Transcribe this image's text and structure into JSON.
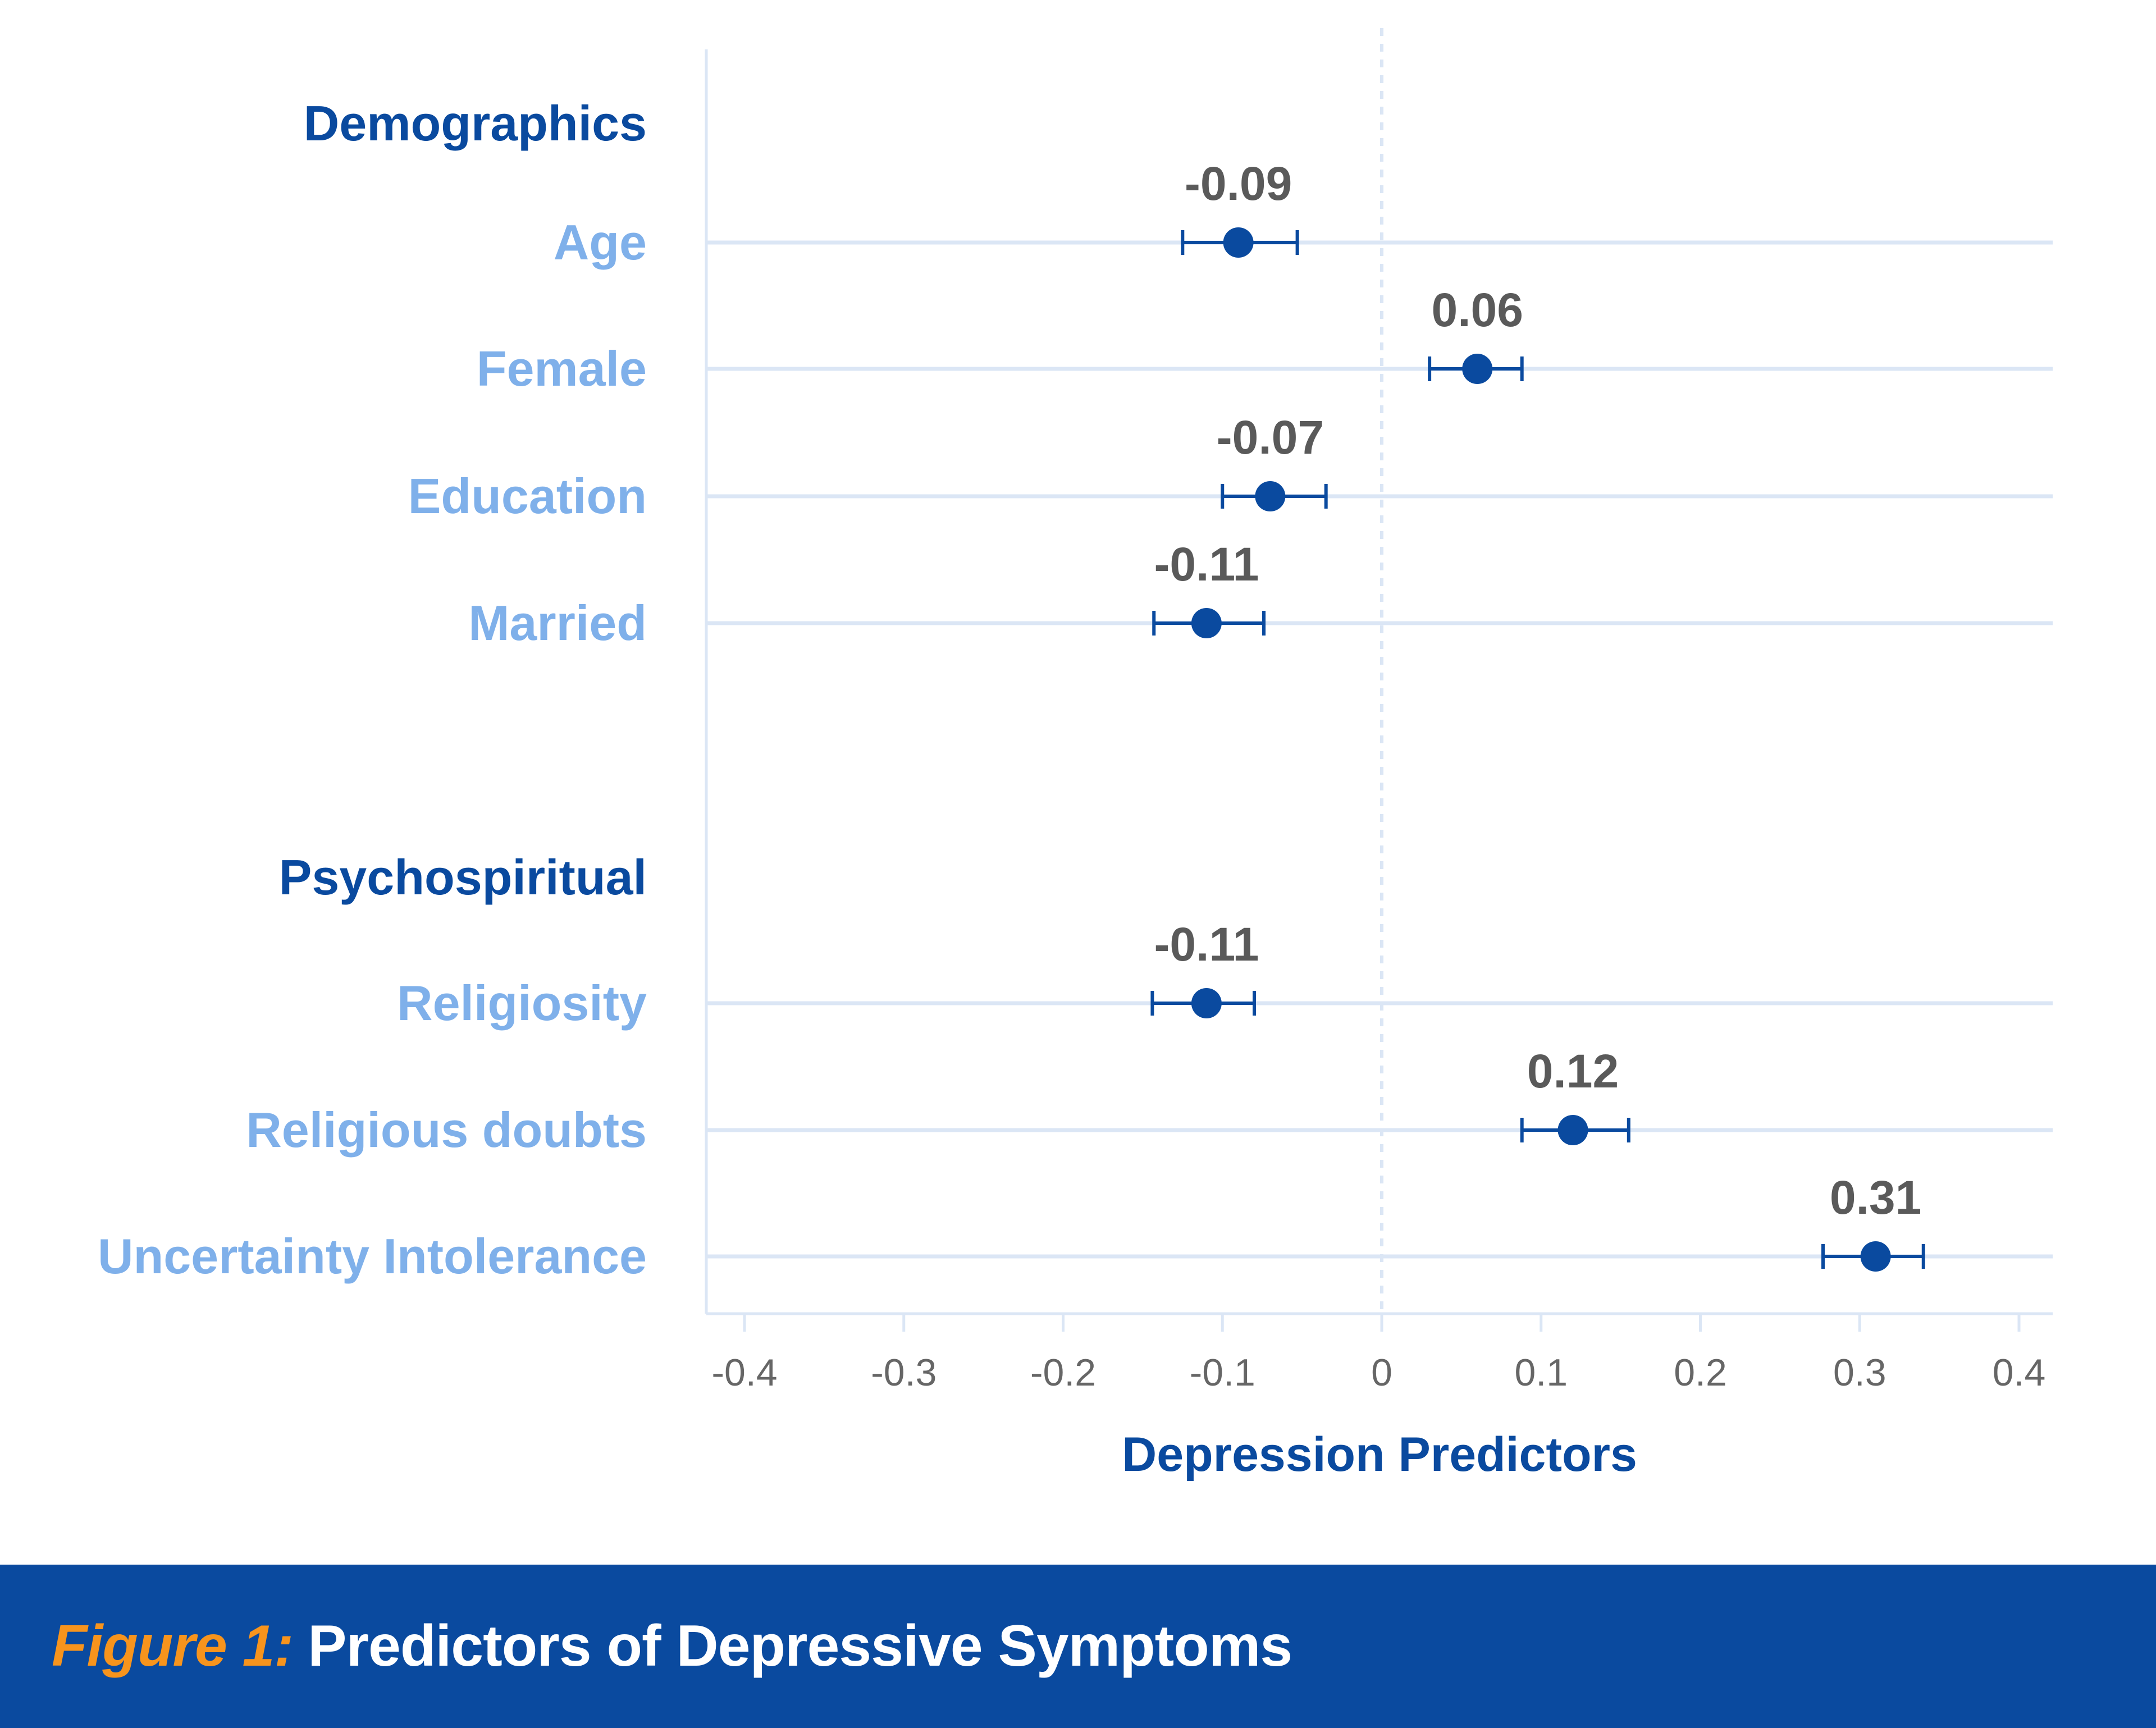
{
  "chart_data": {
    "type": "forest",
    "xlabel": "Depression Predictors",
    "xlim": [
      -0.42,
      0.42
    ],
    "xticks": [
      -0.4,
      -0.3,
      -0.2,
      -0.1,
      0,
      0.1,
      0.2,
      0.3,
      0.4
    ],
    "xtick_labels": [
      "-0.4",
      "-0.3",
      "-0.2",
      "-0.1",
      "0",
      "0.1",
      "0.2",
      "0.3",
      "0.4"
    ],
    "reference_line": 0,
    "groups": [
      {
        "name": "Demographics",
        "rows": [
          {
            "label": "Age",
            "estimate": -0.09,
            "value_label": "-0.09",
            "ci": [
              -0.125,
              -0.053
            ]
          },
          {
            "label": "Female",
            "estimate": 0.06,
            "value_label": "0.06",
            "ci": [
              0.03,
              0.088
            ]
          },
          {
            "label": "Education",
            "estimate": -0.07,
            "value_label": "-0.07",
            "ci": [
              -0.1,
              -0.035
            ]
          },
          {
            "label": "Married",
            "estimate": -0.11,
            "value_label": "-0.11",
            "ci": [
              -0.143,
              -0.074
            ]
          }
        ]
      },
      {
        "name": "Psychospiritual",
        "rows": [
          {
            "label": "Religiosity",
            "estimate": -0.11,
            "value_label": "-0.11",
            "ci": [
              -0.144,
              -0.08
            ]
          },
          {
            "label": "Religious doubts",
            "estimate": 0.12,
            "value_label": "0.12",
            "ci": [
              0.088,
              0.155
            ]
          },
          {
            "label": "Uncertainty Intolerance",
            "estimate": 0.31,
            "value_label": "0.31",
            "ci": [
              0.277,
              0.34
            ]
          }
        ]
      }
    ]
  },
  "footer": {
    "figure_label": "Figure 1:",
    "title": "Predictors of Depressive Symptoms"
  },
  "colors": {
    "group_heading": "#0a4a9f",
    "row_label": "#7fb0ea",
    "point": "#0a4a9f",
    "value_label": "#5a5a5a",
    "grid": "#dbe6f5",
    "tick_label": "#666666",
    "footer_bg": "#0a4a9f",
    "figure_label": "#f7941d",
    "footer_text": "#ffffff"
  }
}
